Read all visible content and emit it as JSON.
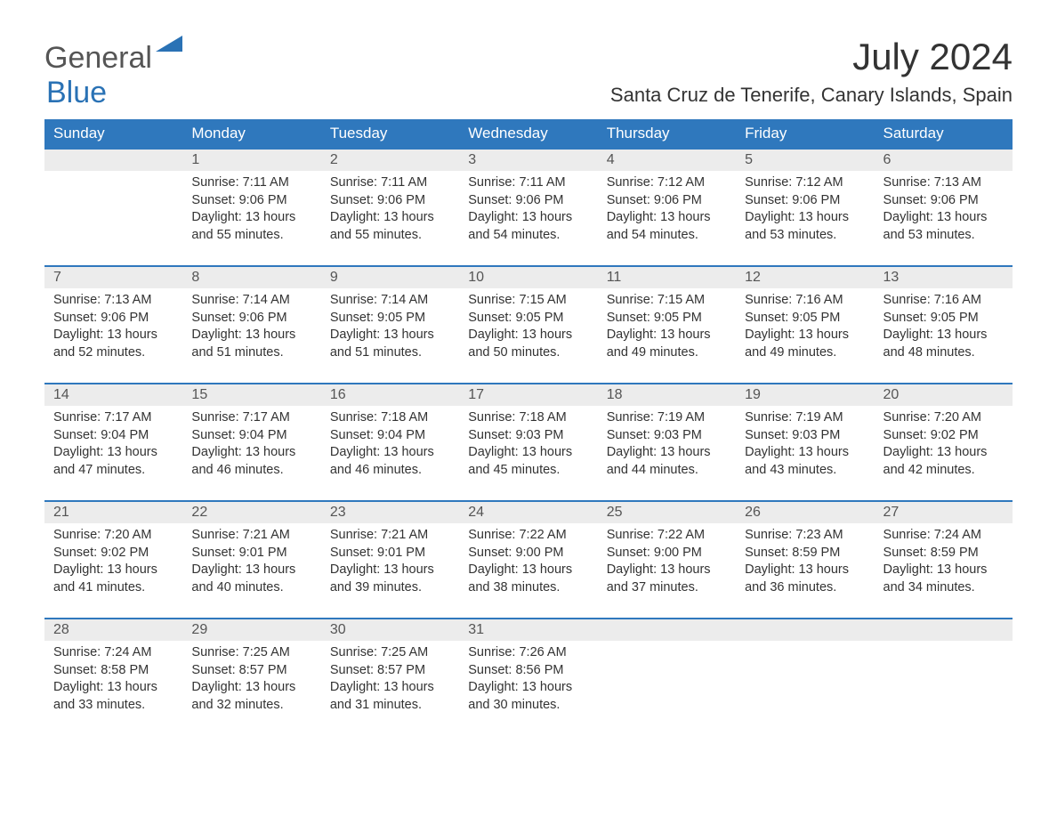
{
  "brand": {
    "part1": "General",
    "part2": "Blue"
  },
  "title": "July 2024",
  "location": "Santa Cruz de Tenerife, Canary Islands, Spain",
  "colors": {
    "header_bg": "#2f78bd",
    "header_text": "#ffffff",
    "daynum_bg": "#ececec",
    "week_border": "#2f78bd",
    "body_text": "#333333",
    "brand_blue": "#2a72b5",
    "brand_gray": "#555555",
    "page_bg": "#ffffff"
  },
  "dow": [
    "Sunday",
    "Monday",
    "Tuesday",
    "Wednesday",
    "Thursday",
    "Friday",
    "Saturday"
  ],
  "weeks": [
    [
      null,
      {
        "d": "1",
        "sr": "7:11 AM",
        "ss": "9:06 PM",
        "dl": "13 hours and 55 minutes."
      },
      {
        "d": "2",
        "sr": "7:11 AM",
        "ss": "9:06 PM",
        "dl": "13 hours and 55 minutes."
      },
      {
        "d": "3",
        "sr": "7:11 AM",
        "ss": "9:06 PM",
        "dl": "13 hours and 54 minutes."
      },
      {
        "d": "4",
        "sr": "7:12 AM",
        "ss": "9:06 PM",
        "dl": "13 hours and 54 minutes."
      },
      {
        "d": "5",
        "sr": "7:12 AM",
        "ss": "9:06 PM",
        "dl": "13 hours and 53 minutes."
      },
      {
        "d": "6",
        "sr": "7:13 AM",
        "ss": "9:06 PM",
        "dl": "13 hours and 53 minutes."
      }
    ],
    [
      {
        "d": "7",
        "sr": "7:13 AM",
        "ss": "9:06 PM",
        "dl": "13 hours and 52 minutes."
      },
      {
        "d": "8",
        "sr": "7:14 AM",
        "ss": "9:06 PM",
        "dl": "13 hours and 51 minutes."
      },
      {
        "d": "9",
        "sr": "7:14 AM",
        "ss": "9:05 PM",
        "dl": "13 hours and 51 minutes."
      },
      {
        "d": "10",
        "sr": "7:15 AM",
        "ss": "9:05 PM",
        "dl": "13 hours and 50 minutes."
      },
      {
        "d": "11",
        "sr": "7:15 AM",
        "ss": "9:05 PM",
        "dl": "13 hours and 49 minutes."
      },
      {
        "d": "12",
        "sr": "7:16 AM",
        "ss": "9:05 PM",
        "dl": "13 hours and 49 minutes."
      },
      {
        "d": "13",
        "sr": "7:16 AM",
        "ss": "9:05 PM",
        "dl": "13 hours and 48 minutes."
      }
    ],
    [
      {
        "d": "14",
        "sr": "7:17 AM",
        "ss": "9:04 PM",
        "dl": "13 hours and 47 minutes."
      },
      {
        "d": "15",
        "sr": "7:17 AM",
        "ss": "9:04 PM",
        "dl": "13 hours and 46 minutes."
      },
      {
        "d": "16",
        "sr": "7:18 AM",
        "ss": "9:04 PM",
        "dl": "13 hours and 46 minutes."
      },
      {
        "d": "17",
        "sr": "7:18 AM",
        "ss": "9:03 PM",
        "dl": "13 hours and 45 minutes."
      },
      {
        "d": "18",
        "sr": "7:19 AM",
        "ss": "9:03 PM",
        "dl": "13 hours and 44 minutes."
      },
      {
        "d": "19",
        "sr": "7:19 AM",
        "ss": "9:03 PM",
        "dl": "13 hours and 43 minutes."
      },
      {
        "d": "20",
        "sr": "7:20 AM",
        "ss": "9:02 PM",
        "dl": "13 hours and 42 minutes."
      }
    ],
    [
      {
        "d": "21",
        "sr": "7:20 AM",
        "ss": "9:02 PM",
        "dl": "13 hours and 41 minutes."
      },
      {
        "d": "22",
        "sr": "7:21 AM",
        "ss": "9:01 PM",
        "dl": "13 hours and 40 minutes."
      },
      {
        "d": "23",
        "sr": "7:21 AM",
        "ss": "9:01 PM",
        "dl": "13 hours and 39 minutes."
      },
      {
        "d": "24",
        "sr": "7:22 AM",
        "ss": "9:00 PM",
        "dl": "13 hours and 38 minutes."
      },
      {
        "d": "25",
        "sr": "7:22 AM",
        "ss": "9:00 PM",
        "dl": "13 hours and 37 minutes."
      },
      {
        "d": "26",
        "sr": "7:23 AM",
        "ss": "8:59 PM",
        "dl": "13 hours and 36 minutes."
      },
      {
        "d": "27",
        "sr": "7:24 AM",
        "ss": "8:59 PM",
        "dl": "13 hours and 34 minutes."
      }
    ],
    [
      {
        "d": "28",
        "sr": "7:24 AM",
        "ss": "8:58 PM",
        "dl": "13 hours and 33 minutes."
      },
      {
        "d": "29",
        "sr": "7:25 AM",
        "ss": "8:57 PM",
        "dl": "13 hours and 32 minutes."
      },
      {
        "d": "30",
        "sr": "7:25 AM",
        "ss": "8:57 PM",
        "dl": "13 hours and 31 minutes."
      },
      {
        "d": "31",
        "sr": "7:26 AM",
        "ss": "8:56 PM",
        "dl": "13 hours and 30 minutes."
      },
      null,
      null,
      null
    ]
  ],
  "labels": {
    "sunrise": "Sunrise: ",
    "sunset": "Sunset: ",
    "daylight": "Daylight: "
  }
}
